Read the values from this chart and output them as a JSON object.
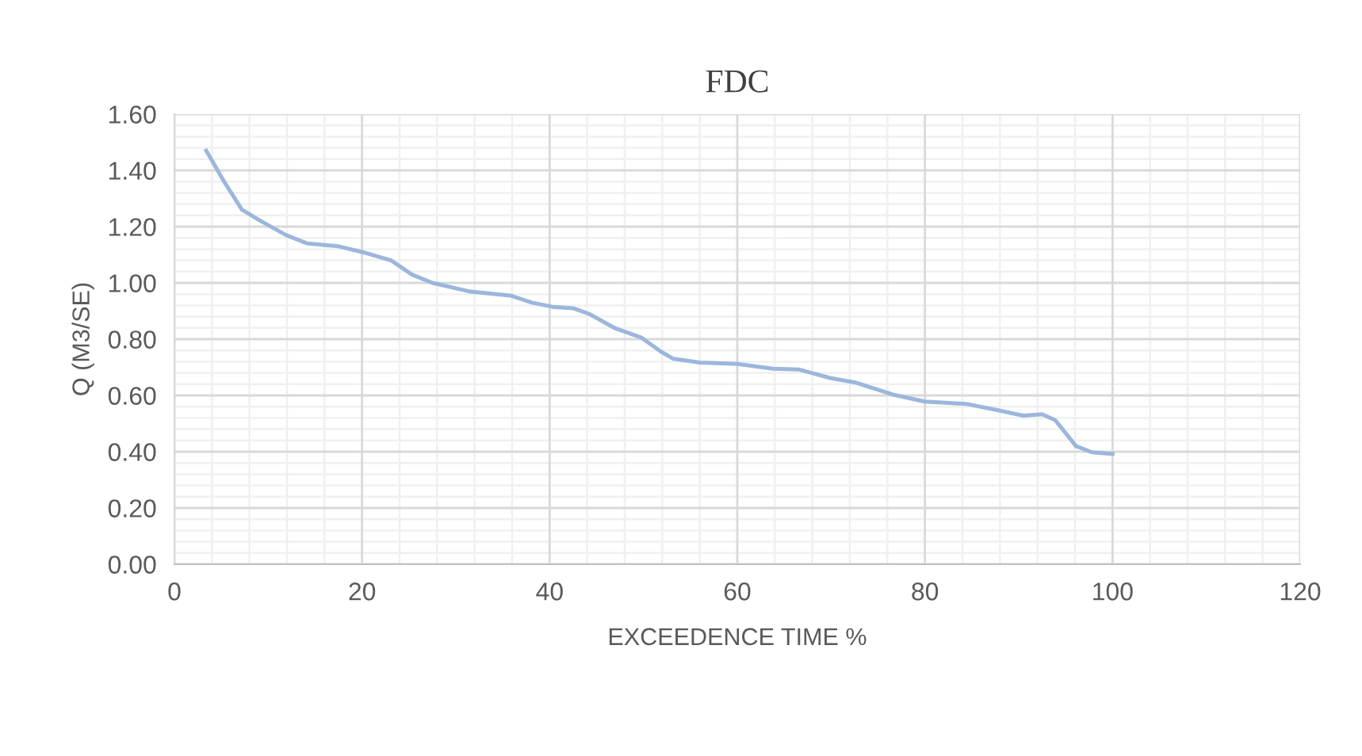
{
  "chart_data": {
    "type": "line",
    "title": "FDC",
    "xlabel": "EXCEEDENCE TIME %",
    "ylabel": "Q (M3/SE)",
    "x": [
      3.4,
      5.3,
      7.2,
      9.2,
      11.9,
      14.2,
      17.5,
      20,
      23.1,
      25.3,
      27.5,
      31.4,
      35.8,
      38.1,
      40.3,
      42.5,
      44.2,
      46.9,
      49.8,
      51.9,
      53.2,
      56,
      60,
      63.8,
      66.6,
      69.9,
      72.7,
      76.6,
      80,
      84.4,
      87.7,
      90.5,
      92.5,
      93.9,
      96.1,
      97.8,
      100
    ],
    "series": [
      {
        "color": "#9cb6dc",
        "values": [
          1.47,
          1.36,
          1.26,
          1.22,
          1.17,
          1.14,
          1.13,
          1.11,
          1.08,
          1.03,
          1.0,
          0.97,
          0.955,
          0.93,
          0.915,
          0.91,
          0.89,
          0.84,
          0.805,
          0.755,
          0.73,
          0.717,
          0.712,
          0.695,
          0.692,
          0.662,
          0.645,
          0.603,
          0.578,
          0.57,
          0.548,
          0.528,
          0.533,
          0.512,
          0.42,
          0.398,
          0.392
        ]
      }
    ],
    "xlim": [
      0,
      120
    ],
    "xticks": [
      0,
      20,
      40,
      60,
      80,
      100,
      120
    ],
    "ylim": [
      0,
      1.6
    ],
    "yticks": [
      {
        "value": 0,
        "label": "0.00"
      },
      {
        "value": 0.2,
        "label": "0.20"
      },
      {
        "value": 0.4,
        "label": "0.40"
      },
      {
        "value": 0.6,
        "label": "0.60"
      },
      {
        "value": 0.8,
        "label": "0.80"
      },
      {
        "value": 1.0,
        "label": "1.00"
      },
      {
        "value": 1.2,
        "label": "1.20"
      },
      {
        "value": 1.4,
        "label": "1.40"
      },
      {
        "value": 1.6,
        "label": "1.60"
      }
    ],
    "grid": true,
    "marker": "none",
    "line_style": "solid"
  }
}
